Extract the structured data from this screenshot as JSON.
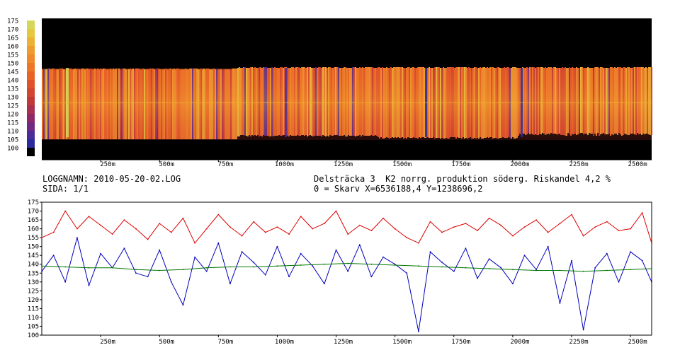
{
  "header": {
    "log_name": "LOGGNAMN: 2010-05-20-02.LOG",
    "page": "SIDA: 1/1",
    "section": "Delsträcka 3  K2 norrg. produktion söderg. Riskandel 4,2 %",
    "origin": "0 = Skarv X=6536188,4 Y=1238696,2"
  },
  "colors": {
    "background": "#ffffff",
    "heatmap_background": "#000000",
    "series_high": "#dd0000",
    "series_low": "#0000bb",
    "series_mean": "#007700",
    "axis": "#000000"
  },
  "chart_data": [
    {
      "type": "heatmap",
      "x_ticks": [
        "250m",
        "500m",
        "750m",
        "1000m",
        "1250m",
        "1500m",
        "1750m",
        "2000m",
        "2250m",
        "2500m"
      ],
      "x_tick_values": [
        250,
        500,
        750,
        1000,
        1250,
        1500,
        1750,
        2000,
        2250,
        2500
      ],
      "x_range": [
        0,
        2590
      ],
      "color_scale": {
        "labels": [
          "175",
          "170",
          "165",
          "160",
          "155",
          "150",
          "145",
          "140",
          "135",
          "130",
          "125",
          "120",
          "115",
          "110",
          "105",
          "100"
        ],
        "colors": [
          "#d4d85a",
          "#e6c83e",
          "#ebb233",
          "#ee9c2e",
          "#ef8a2a",
          "#ee7726",
          "#e86424",
          "#e0532a",
          "#d24530",
          "#c03838",
          "#a83050",
          "#902868",
          "#702880",
          "#4c2a98",
          "#2a2a9c",
          "#000000"
        ]
      }
    },
    {
      "type": "line",
      "x_ticks": [
        "250m",
        "500m",
        "750m",
        "1000m",
        "1250m",
        "1500m",
        "1750m",
        "2000m",
        "2250m",
        "2500m"
      ],
      "x_tick_values": [
        250,
        500,
        750,
        1000,
        1250,
        1500,
        1750,
        2000,
        2250,
        2500
      ],
      "x_range": [
        0,
        2590
      ],
      "y_ticks": [
        "175",
        "170",
        "165",
        "160",
        "155",
        "150",
        "145",
        "140",
        "135",
        "130",
        "125",
        "120",
        "115",
        "110",
        "105",
        "100"
      ],
      "ylim": [
        100,
        175
      ],
      "grid": false,
      "series": [
        {
          "color": "series_high",
          "x": [
            0,
            50,
            100,
            150,
            200,
            250,
            300,
            350,
            400,
            450,
            500,
            550,
            600,
            650,
            700,
            750,
            800,
            850,
            900,
            950,
            1000,
            1050,
            1100,
            1150,
            1200,
            1250,
            1300,
            1350,
            1400,
            1450,
            1500,
            1550,
            1600,
            1650,
            1700,
            1750,
            1800,
            1850,
            1900,
            1950,
            2000,
            2050,
            2100,
            2150,
            2200,
            2250,
            2300,
            2350,
            2400,
            2450,
            2500,
            2550,
            2590
          ],
          "values": [
            155,
            158,
            170,
            160,
            167,
            162,
            157,
            165,
            160,
            154,
            163,
            158,
            166,
            152,
            160,
            168,
            161,
            156,
            164,
            158,
            161,
            157,
            167,
            160,
            163,
            170,
            157,
            162,
            159,
            166,
            160,
            155,
            152,
            164,
            158,
            161,
            163,
            159,
            166,
            162,
            156,
            161,
            165,
            158,
            163,
            168,
            156,
            161,
            164,
            159,
            160,
            169,
            152
          ]
        },
        {
          "color": "series_low",
          "x": [
            0,
            50,
            100,
            150,
            200,
            250,
            300,
            350,
            400,
            450,
            500,
            550,
            600,
            650,
            700,
            750,
            800,
            850,
            900,
            950,
            1000,
            1050,
            1100,
            1150,
            1200,
            1250,
            1300,
            1350,
            1400,
            1450,
            1500,
            1550,
            1600,
            1650,
            1700,
            1750,
            1800,
            1850,
            1900,
            1950,
            2000,
            2050,
            2100,
            2150,
            2200,
            2250,
            2300,
            2350,
            2400,
            2450,
            2500,
            2550,
            2590
          ],
          "values": [
            136,
            145,
            130,
            155,
            128,
            146,
            138,
            149,
            135,
            133,
            148,
            130,
            117,
            144,
            136,
            152,
            129,
            147,
            141,
            134,
            150,
            133,
            146,
            139,
            129,
            148,
            136,
            151,
            133,
            144,
            140,
            135,
            102,
            147,
            141,
            136,
            149,
            132,
            143,
            138,
            129,
            145,
            137,
            150,
            118,
            142,
            103,
            138,
            146,
            130,
            147,
            142,
            130
          ]
        },
        {
          "color": "series_mean",
          "x": [
            0,
            100,
            200,
            300,
            400,
            500,
            600,
            700,
            800,
            900,
            1000,
            1100,
            1200,
            1300,
            1400,
            1500,
            1600,
            1700,
            1800,
            1900,
            2000,
            2100,
            2200,
            2300,
            2400,
            2500,
            2590
          ],
          "values": [
            139,
            138.5,
            138,
            138,
            137,
            136.5,
            137,
            138,
            138.5,
            138.5,
            139,
            139.5,
            140,
            140.5,
            140,
            139.5,
            139,
            138.5,
            138,
            137.5,
            137,
            136.5,
            136.5,
            136,
            136.5,
            137,
            137.5
          ]
        }
      ]
    }
  ]
}
